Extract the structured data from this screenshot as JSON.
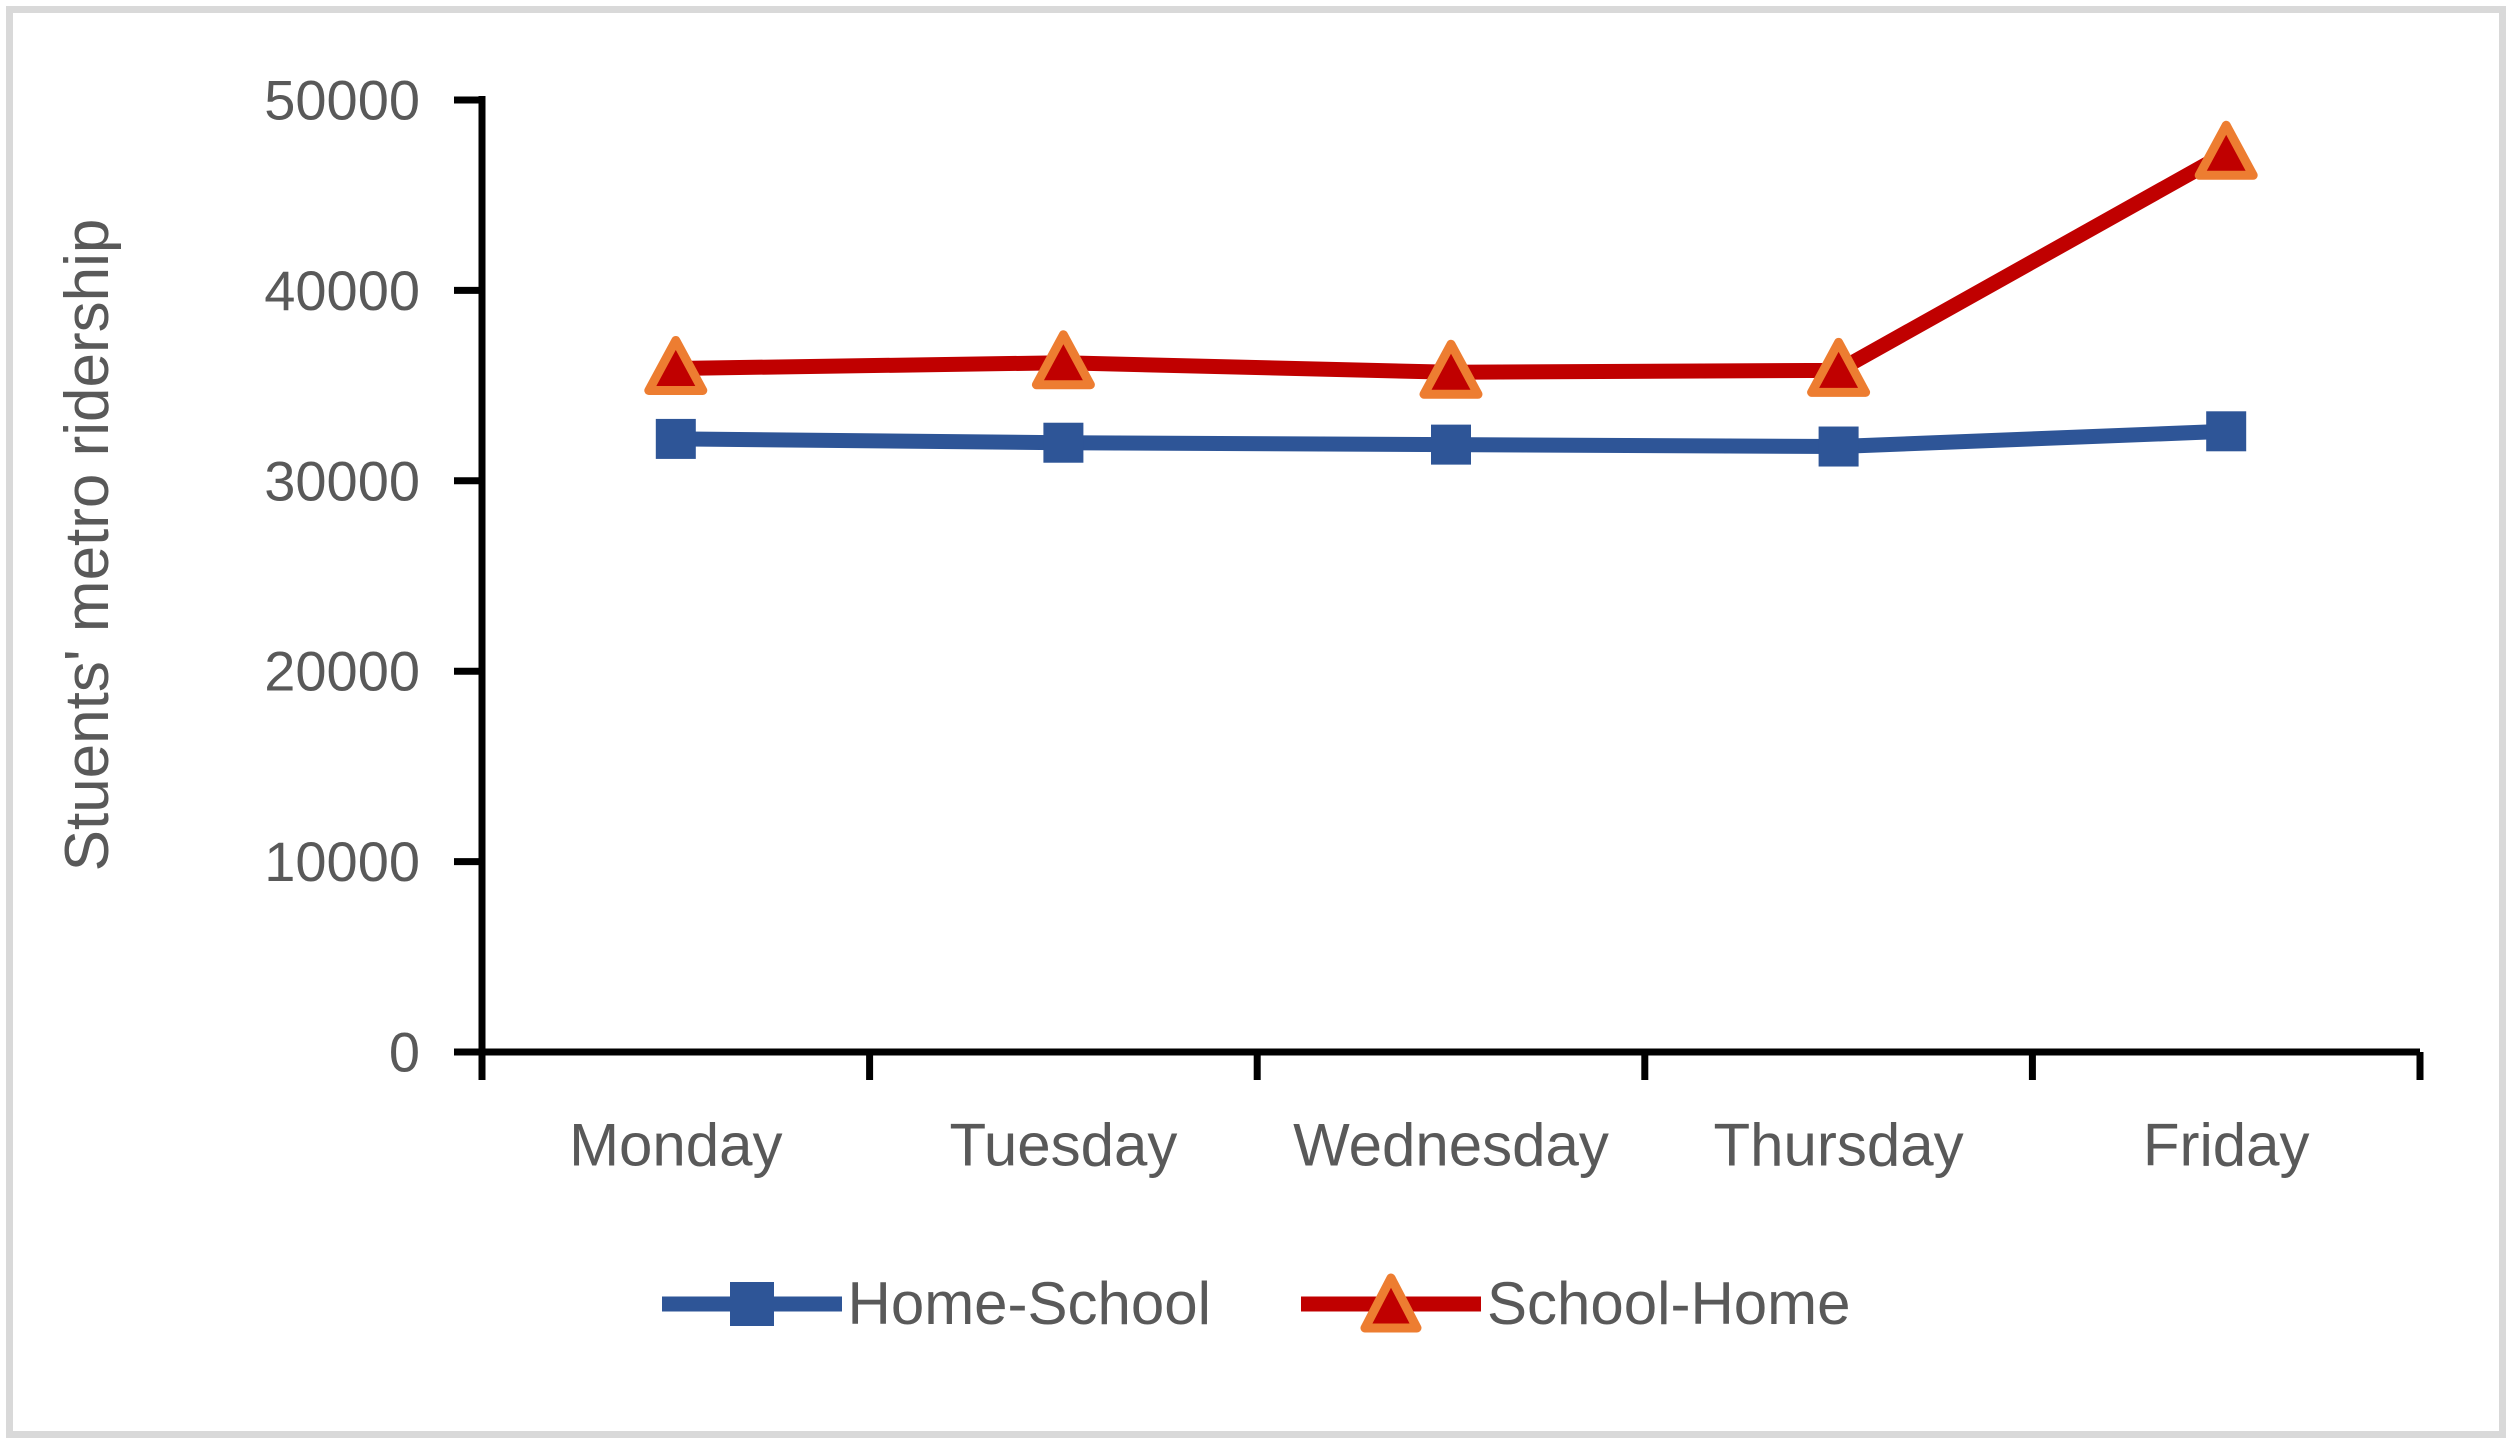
{
  "frame": {
    "border_color": "#D9D9D9",
    "background": "#FFFFFF"
  },
  "chart_data": {
    "type": "line",
    "title": "",
    "xlabel": "",
    "ylabel": "Stuents' metro ridership",
    "categories": [
      "Monday",
      "Tuesday",
      "Wednesday",
      "Thursday",
      "Friday"
    ],
    "series": [
      {
        "name": "Home-School",
        "values": [
          32200,
          32000,
          31900,
          31800,
          32600
        ],
        "color": "#2E5597",
        "marker": "square"
      },
      {
        "name": "School-Home",
        "values": [
          35900,
          36200,
          35700,
          35800,
          47200
        ],
        "color": "#C00000",
        "marker": "triangle",
        "marker_stroke": "#ED7D31"
      }
    ],
    "ylim": [
      0,
      50000
    ],
    "yticks": [
      0,
      10000,
      20000,
      30000,
      40000,
      50000
    ],
    "grid": false,
    "legend_position": "bottom",
    "axis_color": "#000000",
    "text_color": "#595959"
  }
}
